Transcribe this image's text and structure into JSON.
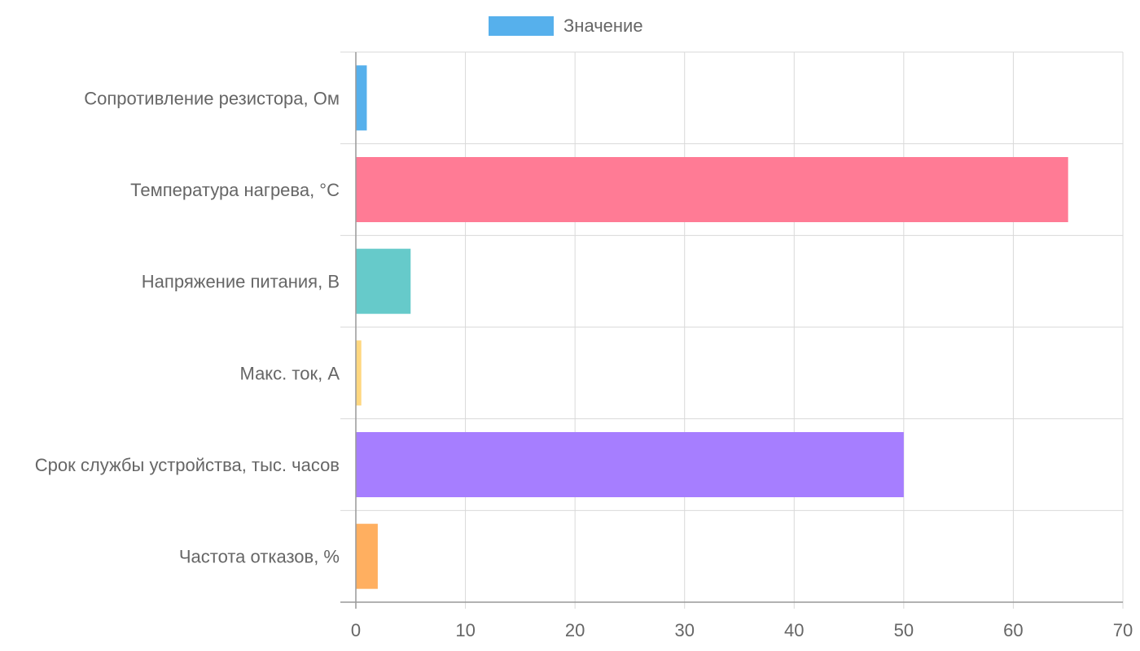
{
  "chart_data": {
    "type": "bar",
    "orientation": "horizontal",
    "legend": {
      "position": "top",
      "label": "Значение",
      "color": "#56B0EC"
    },
    "categories": [
      "Сопротивление резистора, Ом",
      "Температура нагрева, °C",
      "Напряжение питания, В",
      "Макс. ток, А",
      "Срок службы устройства, тыс. часов",
      "Частота отказов, %"
    ],
    "series": [
      {
        "name": "Значение",
        "values": [
          1,
          65,
          5,
          0.5,
          50,
          2
        ]
      }
    ],
    "colors": [
      "#56B0EC",
      "#FF7B95",
      "#66CACA",
      "#FFD77F",
      "#A67EFF",
      "#FFAF60"
    ],
    "xlim": [
      0,
      70
    ],
    "xticks": [
      0,
      10,
      20,
      30,
      40,
      50,
      60,
      70
    ],
    "grid": true
  }
}
